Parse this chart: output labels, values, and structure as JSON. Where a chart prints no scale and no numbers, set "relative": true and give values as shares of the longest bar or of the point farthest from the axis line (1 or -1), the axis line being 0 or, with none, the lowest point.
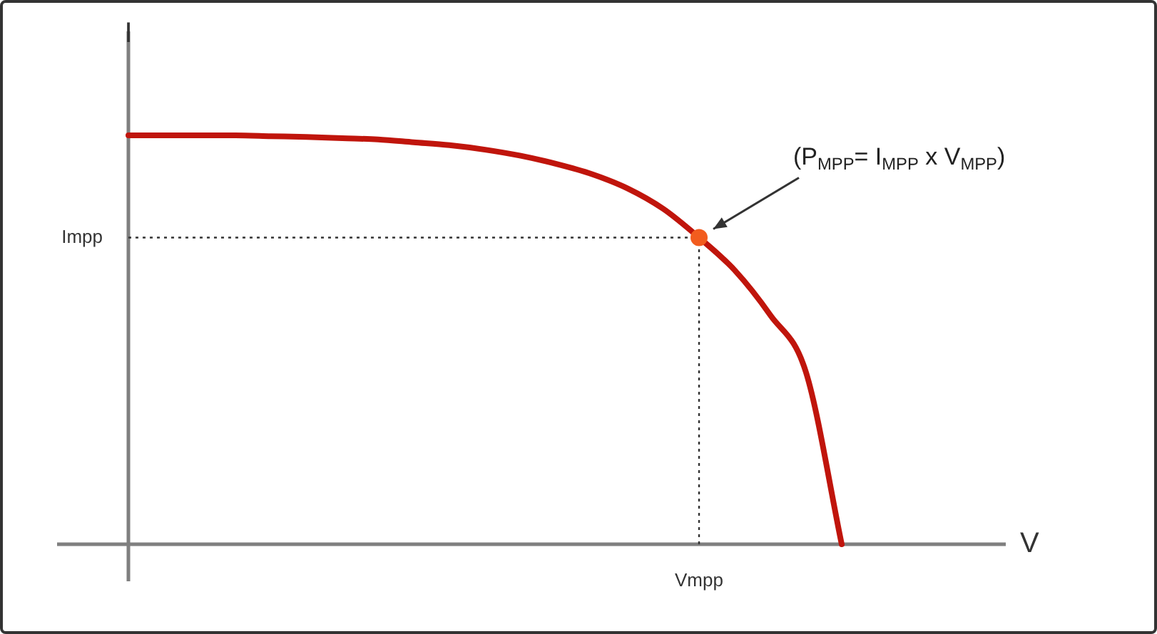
{
  "chart_data": {
    "type": "line",
    "relative": true,
    "xlabel": "V",
    "ylabel": "I",
    "categories": [
      null,
      null,
      null,
      null,
      null,
      null,
      null,
      null,
      null,
      null,
      null,
      null,
      null,
      null,
      null,
      null,
      null,
      null,
      null,
      null,
      null,
      null,
      null,
      null,
      null,
      null
    ],
    "series": [
      {
        "color": "#c0150c",
        "values": [
          1,
          1,
          1,
          1,
          0.998,
          0.996,
          0.993,
          0.99,
          0.983,
          0.976,
          0.965,
          0.95,
          0.93,
          0.905,
          0.87,
          0.82,
          0.75,
          0.67,
          0.56,
          0.42,
          0,
          null,
          null,
          null,
          null,
          null
        ]
      }
    ],
    "ref_lines": [
      {
        "axis": "y",
        "value": 0.75,
        "label": "Impp",
        "line_style": "dotted",
        "color": "#333333"
      }
    ],
    "annotations": [
      "(P$_{MPP}$= I$_{MPP}$ x V$_{MPP}$)",
      "Vmpp"
    ],
    "grid": false,
    "legend": false,
    "marker": "none",
    "line_style": "solid"
  }
}
